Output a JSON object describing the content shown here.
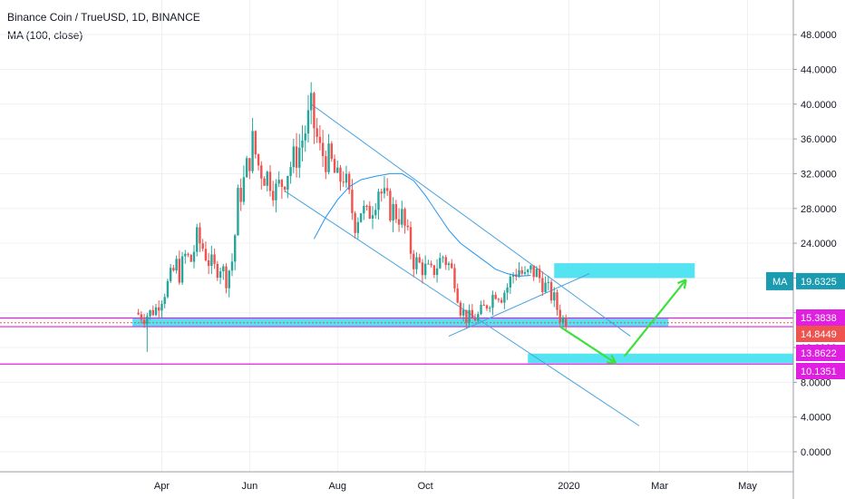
{
  "header": {
    "title": "Binance Coin / TrueUSD, 1D, BINANCE",
    "indicator": "MA (100, close)"
  },
  "colors": {
    "up": "#26a69a",
    "down": "#ef5350",
    "ma_line": "#2196f3",
    "trendline": "#4aa3df",
    "zone_fill": "#40e0f0",
    "arrow": "#3ee03e",
    "magenta_line": "#e020e0",
    "grid": "#eef0f3"
  },
  "chart_data": {
    "type": "candlestick",
    "x_ticks": [
      "Apr",
      "Jun",
      "Aug",
      "Oct",
      "2020",
      "Mar",
      "May"
    ],
    "y_ticks": [
      "48.0000",
      "44.0000",
      "40.0000",
      "36.0000",
      "32.0000",
      "28.0000",
      "24.0000",
      "20.0000",
      "16.0000",
      "12.0000",
      "8.0000",
      "4.0000",
      "0.0000"
    ],
    "y_range": [
      0,
      48
    ],
    "grid": true,
    "ma_label": "MA",
    "ma_value_label": "19.6325",
    "price_tags": [
      {
        "label": "15.3838",
        "value": 15.3838,
        "color": "#e020e0"
      },
      {
        "label": "14.8449",
        "value": 14.8449,
        "color": "#ef5350"
      },
      {
        "label": "13.8622",
        "value": 13.8622,
        "color": "#e020e0"
      },
      {
        "label": "10.1351",
        "value": 10.1351,
        "color": "#e020e0"
      }
    ],
    "price_path": [
      [
        -7,
        16
      ],
      [
        -4,
        15.5
      ],
      [
        0,
        16.5
      ],
      [
        3,
        18.5
      ],
      [
        5,
        20
      ],
      [
        7,
        21.5
      ],
      [
        8,
        20.5
      ],
      [
        10,
        22.5
      ],
      [
        12,
        22
      ],
      [
        14,
        24.5
      ],
      [
        16,
        23.5
      ],
      [
        18,
        22
      ],
      [
        20,
        21
      ],
      [
        22,
        21.5
      ],
      [
        24,
        20
      ],
      [
        26,
        22
      ],
      [
        27,
        25
      ],
      [
        28,
        29
      ],
      [
        30,
        31
      ],
      [
        32,
        34
      ],
      [
        33,
        35.5
      ],
      [
        35,
        33
      ],
      [
        37,
        32
      ],
      [
        39,
        31.5
      ],
      [
        41,
        30
      ],
      [
        43,
        31
      ],
      [
        45,
        32.5
      ],
      [
        47,
        33.5
      ],
      [
        49,
        35
      ],
      [
        51,
        37
      ],
      [
        53,
        39
      ],
      [
        54,
        37.5
      ],
      [
        56,
        34.5
      ],
      [
        58,
        34
      ],
      [
        60,
        33
      ],
      [
        62,
        31
      ],
      [
        64,
        32
      ],
      [
        66,
        29
      ],
      [
        68,
        26.5
      ],
      [
        70,
        28
      ],
      [
        72,
        27
      ],
      [
        74,
        28.5
      ],
      [
        76,
        30.5
      ],
      [
        78,
        29
      ],
      [
        80,
        28
      ],
      [
        82,
        27.5
      ],
      [
        84,
        27
      ],
      [
        86,
        24.5
      ],
      [
        88,
        22
      ],
      [
        90,
        21.5
      ],
      [
        92,
        21
      ],
      [
        94,
        20.5
      ],
      [
        96,
        21.5
      ],
      [
        98,
        22.5
      ],
      [
        100,
        21.5
      ],
      [
        102,
        20
      ],
      [
        104,
        16.5
      ],
      [
        106,
        15.5
      ],
      [
        108,
        15.3
      ],
      [
        110,
        15.6
      ],
      [
        112,
        16.5
      ],
      [
        114,
        17.5
      ],
      [
        116,
        18.5
      ],
      [
        118,
        18
      ],
      [
        120,
        19
      ],
      [
        122,
        20.5
      ],
      [
        124,
        21
      ],
      [
        126,
        20
      ],
      [
        128,
        20.8
      ],
      [
        130,
        20.5
      ],
      [
        132,
        19.5
      ],
      [
        134,
        18.5
      ],
      [
        136,
        17.5
      ],
      [
        138,
        15.5
      ],
      [
        140,
        15.1
      ]
    ],
    "ma_path": [
      [
        54,
        24.5
      ],
      [
        58,
        27
      ],
      [
        62,
        29
      ],
      [
        66,
        30.5
      ],
      [
        70,
        31.3
      ],
      [
        75,
        31.7
      ],
      [
        80,
        32
      ],
      [
        84,
        32
      ],
      [
        88,
        31.2
      ],
      [
        92,
        29.5
      ],
      [
        96,
        27.5
      ],
      [
        100,
        25.5
      ],
      [
        104,
        24
      ],
      [
        108,
        23
      ],
      [
        112,
        22
      ],
      [
        116,
        21
      ],
      [
        120,
        20.5
      ],
      [
        124,
        20.2
      ],
      [
        128,
        20.3
      ]
    ],
    "trendlines": [
      {
        "from": [
          53,
          40
        ],
        "to": [
          162,
          13.3
        ]
      },
      {
        "from": [
          44,
          30
        ],
        "to": [
          165,
          3
        ]
      },
      {
        "from": [
          100,
          13.3
        ],
        "to": [
          148,
          20.5
        ]
      }
    ],
    "zones": [
      {
        "x0": -8,
        "x1": 175,
        "y0": 14.4,
        "y1": 15.4
      },
      {
        "x0": 136,
        "x1": 184,
        "y0": 20,
        "y1": 21.7
      },
      {
        "x0": 127,
        "x1": 221,
        "y0": 10.2,
        "y1": 11.3
      }
    ],
    "arrows": [
      {
        "from": [
          138,
          14.4
        ],
        "to": [
          157,
          10.2
        ]
      },
      {
        "from": [
          160,
          11
        ],
        "to": [
          181,
          19.8
        ]
      }
    ],
    "hlines": [
      15.4,
      14.4,
      10.1
    ],
    "dotted_line": 14.85
  }
}
